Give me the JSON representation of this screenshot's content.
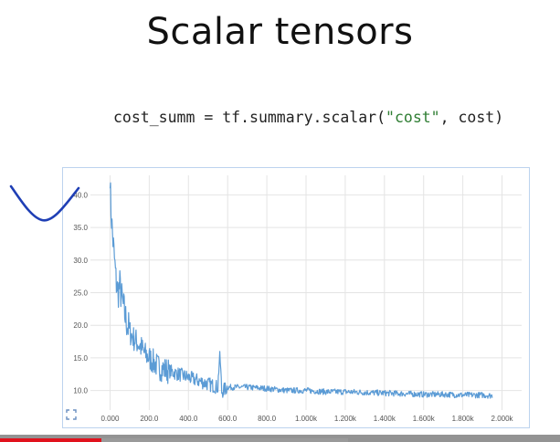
{
  "slide": {
    "title": "Scalar tensors",
    "code_prefix": "cost_summ = tf.summary.scalar(",
    "code_string": "\"cost\"",
    "code_suffix": ", cost)"
  },
  "colors": {
    "series": "#5b9bd5",
    "grid": "#e4e4e4",
    "frame": "#bcd3ee",
    "scribble": "#1f3fb5",
    "progress": "#e1121d"
  },
  "icons": [
    "expand-icon"
  ],
  "video": {
    "progress": 0.18,
    "buffered": 0.62
  },
  "chart_data": {
    "type": "line",
    "title": "",
    "xlabel": "",
    "ylabel": "",
    "xlim": [
      -100,
      2100
    ],
    "ylim": [
      7,
      43
    ],
    "grid": true,
    "x_ticks": [
      0,
      200,
      400,
      600,
      800,
      1000,
      1200,
      1400,
      1600,
      1800,
      2000
    ],
    "x_tick_labels": [
      "0.000",
      "200.0",
      "400.0",
      "600.0",
      "800.0",
      "1.000k",
      "1.200k",
      "1.400k",
      "1.600k",
      "1.800k",
      "2.000k"
    ],
    "y_ticks": [
      10,
      15,
      20,
      25,
      30,
      35,
      40
    ],
    "y_tick_labels": [
      "10.0",
      "15.0",
      "20.0",
      "25.0",
      "30.0",
      "35.0",
      "40.0"
    ],
    "series": [
      {
        "x": [
          0,
          10,
          20,
          30,
          40,
          50,
          60,
          80,
          100,
          120,
          150,
          180,
          200,
          250,
          300,
          350,
          400,
          450,
          500,
          550,
          560,
          570,
          600,
          650,
          700,
          800,
          900,
          1000,
          1100,
          1200,
          1300,
          1400,
          1500,
          1600,
          1700,
          1800,
          1900,
          1950
        ],
        "values": [
          41.0,
          35.0,
          31.0,
          27.0,
          25.0,
          26.0,
          24.0,
          21.0,
          19.0,
          18.0,
          17.0,
          15.5,
          15.0,
          13.5,
          13.0,
          12.5,
          12.0,
          11.5,
          11.0,
          10.5,
          16.0,
          9.8,
          10.5,
          10.5,
          10.5,
          10.3,
          10.0,
          10.0,
          9.8,
          9.8,
          9.7,
          9.6,
          9.5,
          9.4,
          9.4,
          9.3,
          9.3,
          9.2
        ]
      }
    ]
  }
}
